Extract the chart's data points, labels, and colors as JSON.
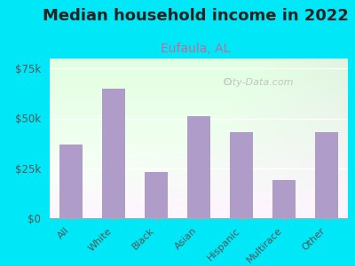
{
  "title": "Median household income in 2022",
  "subtitle": "Eufaula, AL",
  "categories": [
    "All",
    "White",
    "Black",
    "Asian",
    "Hispanic",
    "Multirace",
    "Other"
  ],
  "values": [
    37000,
    65000,
    23000,
    51000,
    43000,
    19000,
    43000
  ],
  "bar_color": "#b09cc8",
  "title_fontsize": 13,
  "subtitle_fontsize": 10,
  "subtitle_color": "#cc6699",
  "background_outer": "#00e8f8",
  "tick_label_color": "#555555",
  "ylim": [
    0,
    80000
  ],
  "yticks": [
    0,
    25000,
    50000,
    75000
  ],
  "watermark": "City-Data.com",
  "watermark_color": "#bbbbbb"
}
